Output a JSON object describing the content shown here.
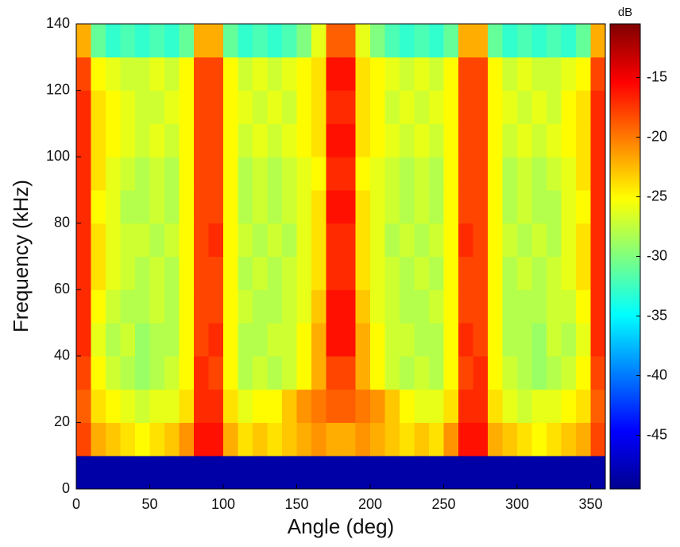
{
  "chart_data": {
    "type": "heatmap",
    "xlabel": "Angle (deg)",
    "ylabel": "Frequency (kHz)",
    "colorbar_label": "dB",
    "colormap": "jet",
    "xbins": [
      0,
      10,
      20,
      30,
      40,
      50,
      60,
      70,
      80,
      90,
      100,
      110,
      120,
      130,
      140,
      150,
      160,
      170,
      180,
      190,
      200,
      210,
      220,
      230,
      240,
      250,
      260,
      270,
      280,
      290,
      300,
      310,
      320,
      330,
      340,
      350,
      360
    ],
    "ybins": [
      0,
      10,
      20,
      30,
      40,
      50,
      60,
      70,
      80,
      90,
      100,
      110,
      120,
      130,
      140
    ],
    "z": [
      [
        -48,
        -48,
        -48,
        -48,
        -48,
        -48,
        -48,
        -48,
        -48,
        -48,
        -48,
        -48,
        -48,
        -48,
        -48,
        -48,
        -48,
        -48,
        -48,
        -48,
        -48,
        -48,
        -48,
        -48,
        -48,
        -48,
        -48,
        -48,
        -48,
        -48,
        -48,
        -48,
        -48,
        -48,
        -48,
        -48
      ],
      [
        -18,
        -22,
        -23,
        -24,
        -25,
        -24,
        -23,
        -21,
        -16,
        -16,
        -22,
        -24,
        -23,
        -24,
        -23,
        -22,
        -21,
        -22,
        -22,
        -21,
        -22,
        -23,
        -24,
        -23,
        -24,
        -21,
        -16,
        -16,
        -22,
        -23,
        -24,
        -25,
        -24,
        -23,
        -22,
        -18
      ],
      [
        -19,
        -24,
        -25,
        -26,
        -27,
        -26,
        -26,
        -24,
        -17,
        -17,
        -24,
        -26,
        -25,
        -25,
        -23,
        -21,
        -20,
        -19,
        -19,
        -20,
        -21,
        -23,
        -25,
        -26,
        -26,
        -24,
        -17,
        -17,
        -24,
        -26,
        -27,
        -26,
        -26,
        -25,
        -24,
        -19
      ],
      [
        -18,
        -25,
        -27,
        -28,
        -29,
        -28,
        -27,
        -25,
        -17,
        -18,
        -25,
        -28,
        -27,
        -28,
        -27,
        -25,
        -22,
        -18,
        -18,
        -22,
        -25,
        -27,
        -28,
        -27,
        -28,
        -25,
        -18,
        -17,
        -25,
        -27,
        -28,
        -29,
        -28,
        -27,
        -25,
        -18
      ],
      [
        -17,
        -26,
        -28,
        -27,
        -29,
        -28,
        -28,
        -25,
        -18,
        -17,
        -25,
        -28,
        -28,
        -27,
        -27,
        -25,
        -22,
        -16,
        -16,
        -22,
        -25,
        -27,
        -27,
        -28,
        -28,
        -25,
        -17,
        -18,
        -25,
        -28,
        -28,
        -29,
        -27,
        -28,
        -26,
        -17
      ],
      [
        -17,
        -25,
        -27,
        -28,
        -28,
        -27,
        -28,
        -25,
        -18,
        -18,
        -25,
        -27,
        -28,
        -28,
        -27,
        -26,
        -23,
        -16,
        -16,
        -23,
        -26,
        -27,
        -28,
        -28,
        -27,
        -25,
        -18,
        -18,
        -25,
        -28,
        -28,
        -28,
        -27,
        -27,
        -25,
        -17
      ],
      [
        -17,
        -24,
        -26,
        -27,
        -28,
        -27,
        -28,
        -25,
        -18,
        -18,
        -25,
        -28,
        -27,
        -28,
        -27,
        -26,
        -24,
        -17,
        -17,
        -24,
        -26,
        -27,
        -28,
        -27,
        -28,
        -25,
        -18,
        -18,
        -25,
        -28,
        -27,
        -28,
        -27,
        -26,
        -24,
        -17
      ],
      [
        -17,
        -24,
        -26,
        -27,
        -27,
        -28,
        -27,
        -25,
        -18,
        -17,
        -25,
        -27,
        -28,
        -27,
        -28,
        -26,
        -24,
        -17,
        -17,
        -24,
        -26,
        -28,
        -27,
        -28,
        -27,
        -25,
        -17,
        -18,
        -25,
        -27,
        -28,
        -27,
        -28,
        -26,
        -24,
        -17
      ],
      [
        -17,
        -25,
        -26,
        -28,
        -28,
        -27,
        -28,
        -25,
        -18,
        -18,
        -25,
        -28,
        -27,
        -28,
        -27,
        -26,
        -24,
        -16,
        -16,
        -24,
        -26,
        -27,
        -28,
        -27,
        -28,
        -25,
        -18,
        -18,
        -25,
        -28,
        -27,
        -28,
        -28,
        -26,
        -25,
        -17
      ],
      [
        -17,
        -24,
        -26,
        -27,
        -28,
        -27,
        -28,
        -25,
        -18,
        -18,
        -25,
        -28,
        -27,
        -28,
        -27,
        -26,
        -25,
        -17,
        -17,
        -25,
        -26,
        -27,
        -28,
        -27,
        -28,
        -25,
        -18,
        -18,
        -25,
        -28,
        -27,
        -28,
        -27,
        -26,
        -24,
        -17
      ],
      [
        -17,
        -24,
        -25,
        -26,
        -27,
        -26,
        -27,
        -25,
        -18,
        -18,
        -25,
        -27,
        -26,
        -27,
        -26,
        -25,
        -24,
        -16,
        -16,
        -24,
        -25,
        -26,
        -27,
        -26,
        -27,
        -25,
        -18,
        -18,
        -25,
        -27,
        -26,
        -27,
        -26,
        -25,
        -24,
        -17
      ],
      [
        -17,
        -24,
        -25,
        -26,
        -27,
        -27,
        -26,
        -25,
        -18,
        -18,
        -25,
        -26,
        -27,
        -26,
        -27,
        -25,
        -24,
        -17,
        -17,
        -24,
        -25,
        -27,
        -26,
        -27,
        -26,
        -25,
        -18,
        -18,
        -25,
        -26,
        -27,
        -26,
        -27,
        -25,
        -24,
        -17
      ],
      [
        -18,
        -25,
        -26,
        -27,
        -27,
        -26,
        -27,
        -25,
        -18,
        -18,
        -25,
        -27,
        -26,
        -27,
        -26,
        -25,
        -24,
        -16,
        -16,
        -24,
        -25,
        -26,
        -27,
        -26,
        -27,
        -25,
        -18,
        -18,
        -25,
        -27,
        -26,
        -27,
        -27,
        -26,
        -25,
        -18
      ],
      [
        -22,
        -31,
        -33,
        -32,
        -33,
        -32,
        -33,
        -31,
        -22,
        -22,
        -31,
        -33,
        -32,
        -33,
        -32,
        -30,
        -26,
        -19,
        -19,
        -26,
        -30,
        -32,
        -33,
        -32,
        -33,
        -31,
        -22,
        -22,
        -31,
        -33,
        -32,
        -33,
        -32,
        -33,
        -31,
        -22
      ]
    ],
    "xlim": [
      0,
      360
    ],
    "xticks": [
      0,
      50,
      100,
      150,
      200,
      250,
      300,
      350
    ],
    "ylim": [
      0,
      140
    ],
    "yticks": [
      0,
      20,
      40,
      60,
      80,
      100,
      120,
      140
    ],
    "zlim": [
      -49.5,
      -10.5
    ],
    "zticks": [
      -45,
      -40,
      -35,
      -30,
      -25,
      -20,
      -15
    ]
  }
}
